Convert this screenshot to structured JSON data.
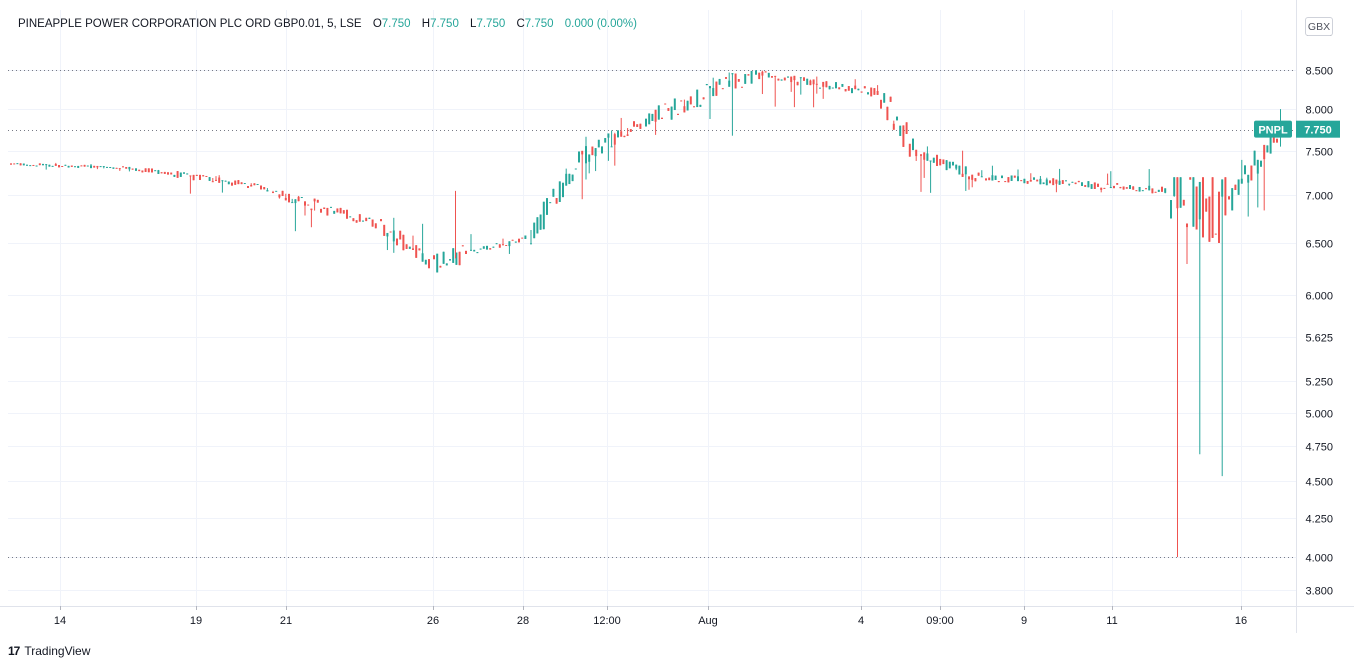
{
  "header": {
    "symbol_line": "PINEAPPLE POWER CORPORATION PLC ORD GBP0.01, 5, LSE",
    "open_label": "O",
    "open": "7.750",
    "high_label": "H",
    "high": "7.750",
    "low_label": "L",
    "low": "7.750",
    "close_label": "C",
    "close": "7.750",
    "change": "0.000 (0.00%)"
  },
  "currency_badge": "GBX",
  "footer": {
    "logo": "17",
    "brand": "TradingView"
  },
  "colors": {
    "up": "#26a69a",
    "down": "#ef5350",
    "grid": "#f0f3fa",
    "text": "#131722"
  },
  "chart_data": {
    "type": "candlestick",
    "title": "PINEAPPLE POWER CORPORATION PLC ORD GBP0.01, 5, LSE",
    "y_scale": "log",
    "ylim": [
      3.7,
      9.1
    ],
    "y_ticks": [
      "3.800",
      "4.000",
      "4.250",
      "4.500",
      "4.750",
      "5.000",
      "5.250",
      "5.625",
      "6.000",
      "6.500",
      "7.000",
      "7.500",
      "8.000",
      "8.500"
    ],
    "x_ticks": [
      "14",
      "19",
      "21",
      "26",
      "28",
      "12:00",
      "Aug",
      "4",
      "09:00",
      "9",
      "11",
      "16"
    ],
    "last_price_label": {
      "symbol": "PNPL",
      "price": "7.750"
    },
    "reference_lines": [
      8.5,
      7.75,
      4.0
    ],
    "segments": [
      {
        "from": 7.35,
        "to": 7.3,
        "min": 7.25,
        "max": 7.4
      },
      {
        "from": 7.3,
        "to": 7.1,
        "min": 7.0,
        "max": 7.3
      },
      {
        "from": 7.1,
        "to": 7.05,
        "min": 7.0,
        "max": 7.2
      },
      {
        "from": 7.05,
        "to": 6.85,
        "min": 6.5,
        "max": 7.05
      },
      {
        "from": 6.85,
        "to": 6.7,
        "min": 6.55,
        "max": 6.95
      },
      {
        "from": 6.7,
        "to": 6.3,
        "min": 6.2,
        "max": 6.85
      },
      {
        "from": 6.3,
        "to": 6.4,
        "min": 6.2,
        "max": 7.0
      },
      {
        "from": 6.4,
        "to": 6.55,
        "min": 6.35,
        "max": 6.6
      },
      {
        "from": 6.55,
        "to": 7.45,
        "min": 6.5,
        "max": 7.5
      },
      {
        "from": 7.45,
        "to": 7.85,
        "min": 7.15,
        "max": 7.95
      },
      {
        "from": 7.85,
        "to": 8.45,
        "min": 7.5,
        "max": 8.5
      },
      {
        "from": 8.45,
        "to": 8.2,
        "min": 8.0,
        "max": 8.5
      },
      {
        "from": 8.2,
        "to": 7.45,
        "min": 7.05,
        "max": 8.3
      },
      {
        "from": 7.45,
        "to": 7.2,
        "min": 7.0,
        "max": 7.6
      },
      {
        "from": 7.2,
        "to": 7.05,
        "min": 7.0,
        "max": 7.35
      },
      {
        "from": 7.05,
        "to": 6.85,
        "min": 4.0,
        "max": 7.2
      },
      {
        "from": 6.85,
        "to": 7.75,
        "min": 6.75,
        "max": 8.0
      }
    ],
    "grid": true,
    "legend": "none"
  }
}
